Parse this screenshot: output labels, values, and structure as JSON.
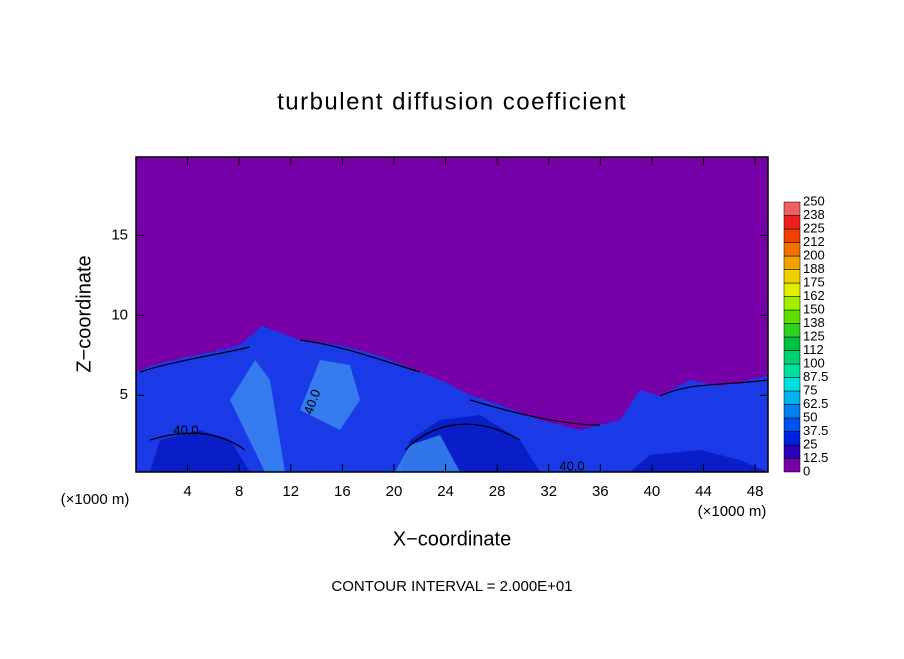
{
  "chart_data": {
    "type": "contour",
    "title": "turbulent diffusion coefficient",
    "xlabel": "X−coordinate",
    "ylabel": "Z−coordinate",
    "x_unit": "(×1000 m)",
    "x_unit_right": "(×1000 m)",
    "annotation": "CONTOUR INTERVAL = 2.000E+01",
    "contour_labels": [
      "40.0",
      "40.0",
      "40.0"
    ],
    "xlim": [
      0,
      49
    ],
    "xticks": [
      4,
      8,
      12,
      16,
      20,
      24,
      28,
      32,
      36,
      40,
      44,
      48
    ],
    "ylim": [
      0.2,
      19.9
    ],
    "yticks": [
      5,
      10,
      15
    ],
    "colorbar": {
      "levels": [
        0,
        12.5,
        25,
        37.5,
        50,
        62.5,
        75,
        87.5,
        100,
        112,
        125,
        138,
        150,
        162,
        175,
        188,
        200,
        212,
        225,
        238,
        250
      ],
      "colors": [
        "#7800a8",
        "#2a00b8",
        "#0020e0",
        "#0050f0",
        "#0080f0",
        "#00b0f0",
        "#00e0e0",
        "#00e0a0",
        "#00d070",
        "#00c040",
        "#30d020",
        "#60e000",
        "#a0f000",
        "#e0f000",
        "#f0d000",
        "#f0a000",
        "#f07000",
        "#f04000",
        "#f02020",
        "#f06060"
      ]
    }
  }
}
